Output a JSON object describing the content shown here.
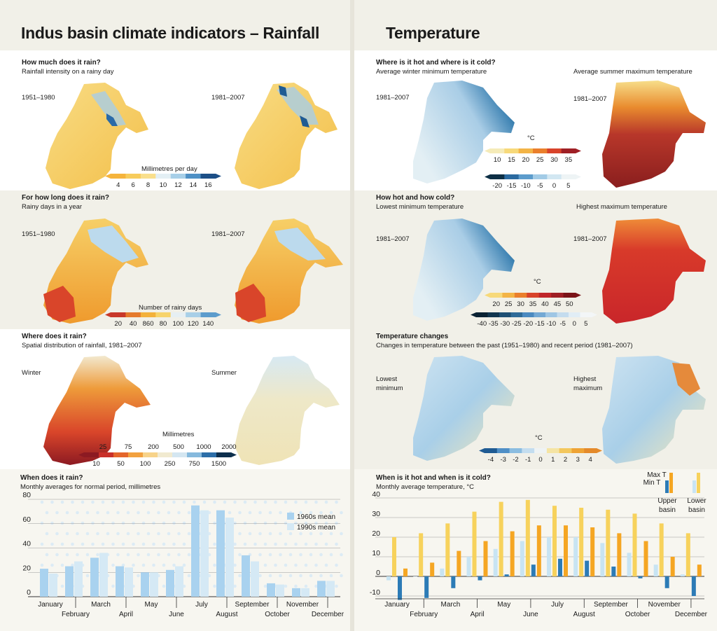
{
  "rainfall_title": "Indus basin climate indicators – Rainfall",
  "temperature_title": "Temperature",
  "panels": {
    "intensity": {
      "heading": "How much does it rain?",
      "subheading": "Rainfall intensity on a rainy day",
      "period_left": "1951–1980",
      "period_right": "1981–2007",
      "legend_title": "Millimetres per day",
      "legend_ticks": [
        "4",
        "6",
        "8",
        "10",
        "12",
        "14",
        "16"
      ]
    },
    "rainy_days": {
      "heading": "For how long does it rain?",
      "subheading": "Rainy days in a year",
      "period_left": "1951–1980",
      "period_right": "1981–2007",
      "legend_title": "Number of rainy days",
      "legend_ticks": [
        "20",
        "40",
        "860",
        "80",
        "100",
        "120",
        "140"
      ]
    },
    "where_rain": {
      "heading": "Where does it rain?",
      "subheading": "Spatial distribution of rainfall, 1981–2007",
      "label_left": "Winter",
      "label_right": "Summer",
      "legend_title": "Millimetres",
      "legend_ticks_top": [
        "25",
        "75",
        "200",
        "500",
        "1000",
        "2000"
      ],
      "legend_ticks_bottom": [
        "10",
        "50",
        "100",
        "250",
        "750",
        "1500"
      ]
    },
    "hot_cold": {
      "heading": "Where is it hot and where is it cold?",
      "subheading_left": "Average winter minimum temperature",
      "subheading_right": "Average summer maximum temperature",
      "period_left": "1981–2007",
      "period_right": "1981–2007",
      "legend_title": "°C",
      "legend_ticks_warm": [
        "10",
        "15",
        "20",
        "25",
        "30",
        "35"
      ],
      "legend_ticks_cold": [
        "-20",
        "-15",
        "-10",
        "-5",
        "0",
        "5"
      ]
    },
    "extremes": {
      "heading": "How hot and how cold?",
      "subheading_left": "Lowest minimum temperature",
      "subheading_right": "Highest maximum temperature",
      "period_left": "1981–2007",
      "period_right": "1981–2007",
      "legend_title": "°C",
      "legend_ticks_warm": [
        "20",
        "25",
        "30",
        "35",
        "40",
        "45",
        "50"
      ],
      "legend_ticks_cold": [
        "-40",
        "-35",
        "-30",
        "-25",
        "-20",
        "-15",
        "-10",
        "-5",
        "0",
        "5"
      ]
    },
    "changes": {
      "heading": "Temperature changes",
      "subheading": "Changes in temperature between the past (1951–1980) and recent period (1981–2007)",
      "label_left_1": "Lowest",
      "label_left_2": "minimum",
      "label_right_1": "Highest",
      "label_right_2": "maximum",
      "legend_title": "°C",
      "legend_ticks": [
        "-4",
        "-3",
        "-2",
        "-1",
        "0",
        "1",
        "2",
        "3",
        "4"
      ]
    }
  },
  "colors": {
    "band": "#f1f0e8",
    "rain_1960s": "#a9d2ef",
    "rain_1990s": "#d5e9f5",
    "maxT_upper": "#f5a623",
    "maxT_lower": "#f7d25c",
    "minT_upper": "#2c7bb6",
    "minT_lower": "#c8e4f3"
  },
  "chart_data": [
    {
      "type": "bar",
      "heading": "When does it rain?",
      "subheading": "Monthly averages for normal period, millimetres",
      "categories": [
        "January",
        "February",
        "March",
        "April",
        "May",
        "June",
        "July",
        "August",
        "September",
        "October",
        "November",
        "December"
      ],
      "series": [
        {
          "name": "1960s mean",
          "values": [
            23,
            25,
            32,
            25,
            20,
            22,
            75,
            71,
            34,
            11,
            7,
            13
          ]
        },
        {
          "name": "1990s mean",
          "values": [
            19,
            29,
            36,
            24,
            20,
            25,
            71,
            65,
            29,
            10,
            7,
            13
          ]
        }
      ],
      "ylim": [
        0,
        80
      ],
      "yticks": [
        "0",
        "20",
        "40",
        "60",
        "80"
      ],
      "grid": true
    },
    {
      "type": "bar",
      "heading": "When is it hot and when is it cold?",
      "subheading": "Monthly average temperature, °C",
      "categories": [
        "January",
        "February",
        "March",
        "April",
        "May",
        "June",
        "July",
        "August",
        "September",
        "October",
        "November",
        "December"
      ],
      "legend": {
        "max_label": "Max T",
        "min_label": "Min T",
        "upper_1": "Upper",
        "upper_2": "basin",
        "lower_1": "Lower",
        "lower_2": "basin"
      },
      "series": [
        {
          "key": "minT_lower",
          "values": [
            -2,
            0,
            4,
            10,
            14,
            18,
            20,
            20,
            17,
            12,
            6,
            1
          ]
        },
        {
          "key": "maxT_lower",
          "values": [
            20,
            22,
            27,
            33,
            38,
            39,
            36,
            35,
            34,
            32,
            27,
            22
          ]
        },
        {
          "key": "minT_upper",
          "values": [
            -12,
            -11,
            -6,
            -2,
            1,
            6,
            9,
            8,
            5,
            -1,
            -6,
            -10
          ]
        },
        {
          "key": "maxT_upper",
          "values": [
            4,
            7,
            13,
            18,
            23,
            26,
            26,
            25,
            22,
            18,
            10,
            6
          ]
        }
      ],
      "ylim": [
        -10,
        40
      ],
      "yticks": [
        "-10",
        "0",
        "10",
        "20",
        "30",
        "40"
      ],
      "grid": true
    }
  ]
}
